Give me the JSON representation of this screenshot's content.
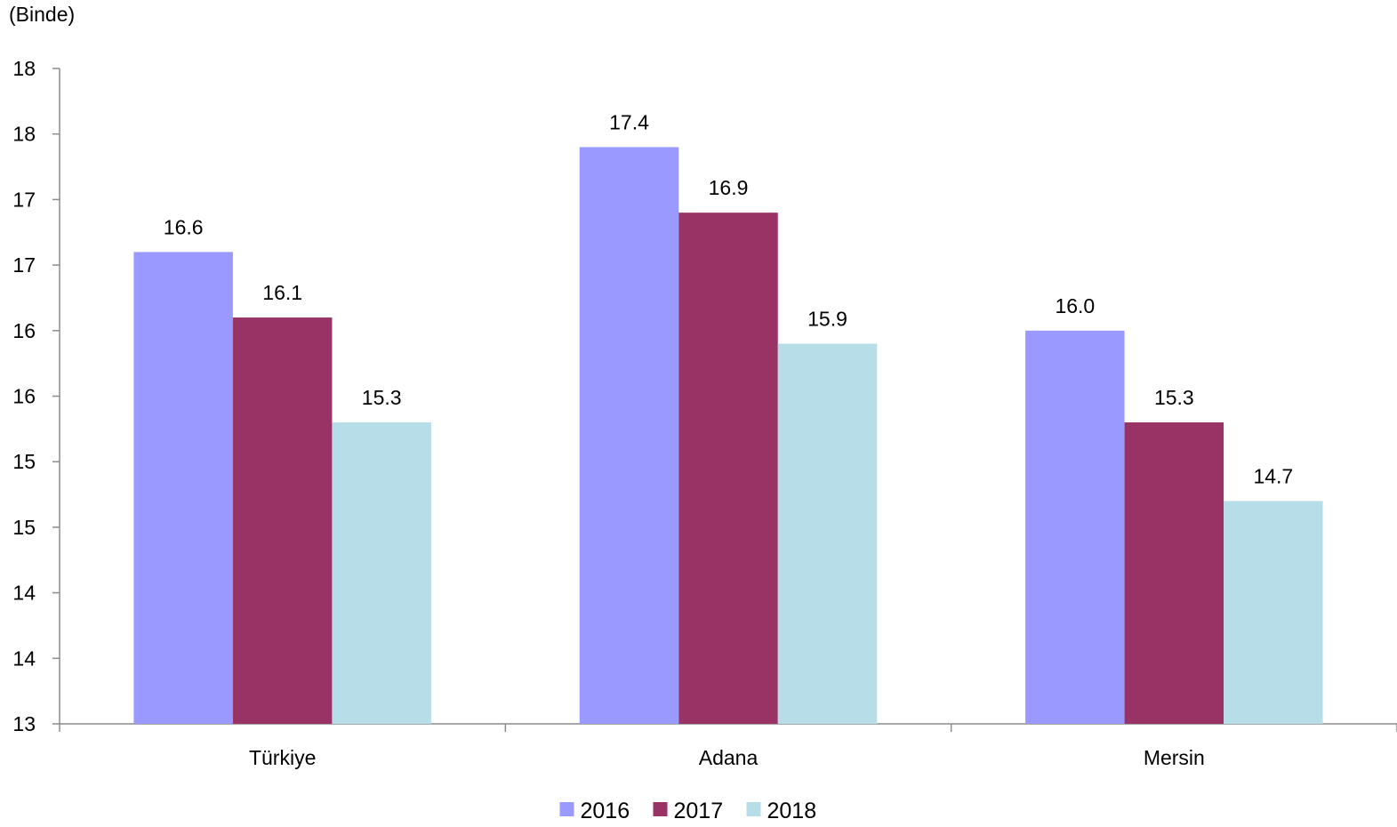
{
  "chart_data": {
    "type": "bar",
    "unit_label": "(Binde)",
    "title": "",
    "xlabel": "",
    "ylabel": "",
    "categories": [
      "Türkiye",
      "Adana",
      "Mersin"
    ],
    "series": [
      {
        "name": "2016",
        "color": "#9999ff",
        "values": [
          16.6,
          17.4,
          16.0
        ],
        "labels": [
          "16.6",
          "17.4",
          "16.0"
        ]
      },
      {
        "name": "2017",
        "color": "#993366",
        "values": [
          16.1,
          16.9,
          15.3
        ],
        "labels": [
          "16.1",
          "16.9",
          "15.3"
        ]
      },
      {
        "name": "2018",
        "color": "#b7dde8",
        "values": [
          15.3,
          15.9,
          14.7
        ],
        "labels": [
          "15.3",
          "15.9",
          "14.7"
        ]
      }
    ],
    "ylim": [
      13.0,
      18.0
    ],
    "y_ticks": [
      13.0,
      13.5,
      14.0,
      14.5,
      15.0,
      15.5,
      16.0,
      16.5,
      17.0,
      17.5,
      18.0
    ],
    "y_tick_labels": [
      "13",
      "14",
      "14",
      "15",
      "15",
      "16",
      "16",
      "17",
      "17",
      "18",
      "18"
    ],
    "grid": false,
    "legend_position": "bottom-center"
  }
}
